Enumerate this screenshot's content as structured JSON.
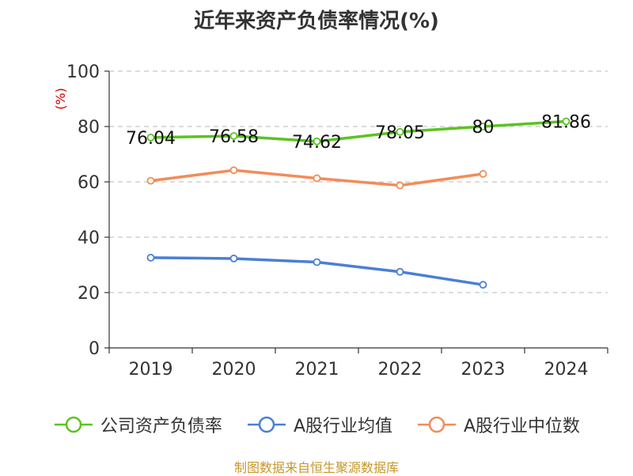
{
  "title": "近年来资产负债率情况(%)",
  "source": "制图数据来自恒生聚源数据库",
  "chart_data": {
    "type": "line",
    "title": "近年来资产负债率情况(%)",
    "ylabel": "(%)",
    "xlabel": "",
    "categories": [
      "2019",
      "2020",
      "2021",
      "2022",
      "2023",
      "2024"
    ],
    "ylim": [
      0,
      100
    ],
    "yticks": [
      0,
      20,
      40,
      60,
      80,
      100
    ],
    "grid": true,
    "legend_position": "bottom",
    "series": [
      {
        "name": "公司资产负债率",
        "color": "#5ac420",
        "values": [
          76.04,
          76.58,
          74.62,
          78.05,
          80,
          81.86
        ],
        "labels": [
          "76.04",
          "76.58",
          "74.62",
          "78.05",
          "80",
          "81.86"
        ]
      },
      {
        "name": "A股行业均值",
        "color": "#4a7fd6",
        "values": [
          32.6,
          32.3,
          31.0,
          27.5,
          22.8,
          null
        ]
      },
      {
        "name": "A股行业中位数",
        "color": "#f28c5a",
        "values": [
          60.4,
          64.2,
          61.3,
          58.7,
          62.9,
          null
        ]
      }
    ]
  }
}
